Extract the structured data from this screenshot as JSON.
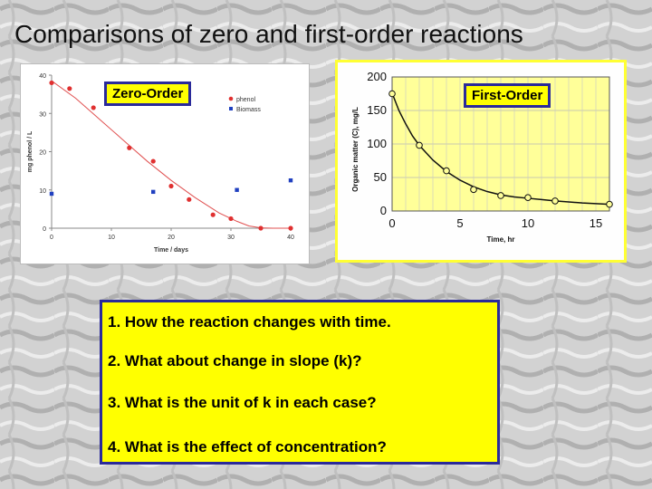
{
  "slide": {
    "title": "Comparisons of zero and first-order reactions",
    "colors": {
      "highlight": "#ffff00",
      "border": "#2a2a9a"
    }
  },
  "zero_order_label": "Zero-Order",
  "first_order_label": "First-Order",
  "questions": [
    "1. How the reaction changes with time.",
    "2. What about change in slope (k)?",
    "3. What is the unit of k in each case?",
    "4. What is the effect of concentration?"
  ],
  "chart_data": [
    {
      "type": "scatter",
      "xlabel": "Time / days",
      "ylabel": "mg phenol / L",
      "xlim": [
        0,
        40
      ],
      "ylim": [
        0,
        40
      ],
      "xticks": [
        0,
        10,
        20,
        30,
        40
      ],
      "yticks": [
        0,
        10,
        20,
        30,
        40
      ],
      "legend_position": "top-right",
      "series": [
        {
          "name": "phenol",
          "color": "#e03030",
          "marker": "circle",
          "x": [
            0,
            3,
            7,
            13,
            17,
            20,
            23,
            27,
            30,
            35,
            40
          ],
          "y": [
            38,
            36.5,
            31.5,
            21,
            17.5,
            11,
            7.5,
            3.5,
            2.5,
            0,
            0
          ]
        },
        {
          "name": "Biomass",
          "color": "#2040c0",
          "marker": "square",
          "x": [
            0,
            17,
            31,
            40
          ],
          "y": [
            9,
            9.5,
            10,
            12.5
          ]
        }
      ],
      "fit_line": {
        "color": "#e05050",
        "x": [
          0,
          4,
          8,
          12,
          16,
          20,
          24,
          28,
          31,
          33,
          35,
          37,
          40
        ],
        "y": [
          38.5,
          34,
          28.5,
          23,
          17.5,
          12.5,
          8,
          4,
          1.8,
          0.6,
          0.1,
          0,
          0
        ]
      }
    },
    {
      "type": "line",
      "xlabel": "Time, hr",
      "ylabel": "Organic matter (C), mg/L",
      "xlim": [
        0,
        16
      ],
      "ylim": [
        0,
        200
      ],
      "xticks": [
        0,
        5,
        10,
        15
      ],
      "yticks": [
        0,
        50,
        100,
        150,
        200
      ],
      "grid": true,
      "plot_background": "#ffff99",
      "series": [
        {
          "color": "#111111",
          "marker": "open-circle",
          "x": [
            0,
            2,
            4,
            6,
            8,
            10,
            12,
            16
          ],
          "y": [
            175,
            98,
            60,
            32,
            23,
            20,
            15,
            10
          ]
        }
      ],
      "curve": {
        "x": [
          0,
          0.5,
          1,
          1.5,
          2,
          3,
          4,
          5,
          6,
          7,
          8,
          9,
          10,
          11,
          12,
          13,
          14,
          15,
          16
        ],
        "y": [
          176,
          150,
          130,
          112,
          98,
          76,
          59,
          46,
          36,
          29,
          24,
          21,
          19,
          17,
          15,
          13.5,
          12,
          11,
          10
        ]
      }
    }
  ]
}
